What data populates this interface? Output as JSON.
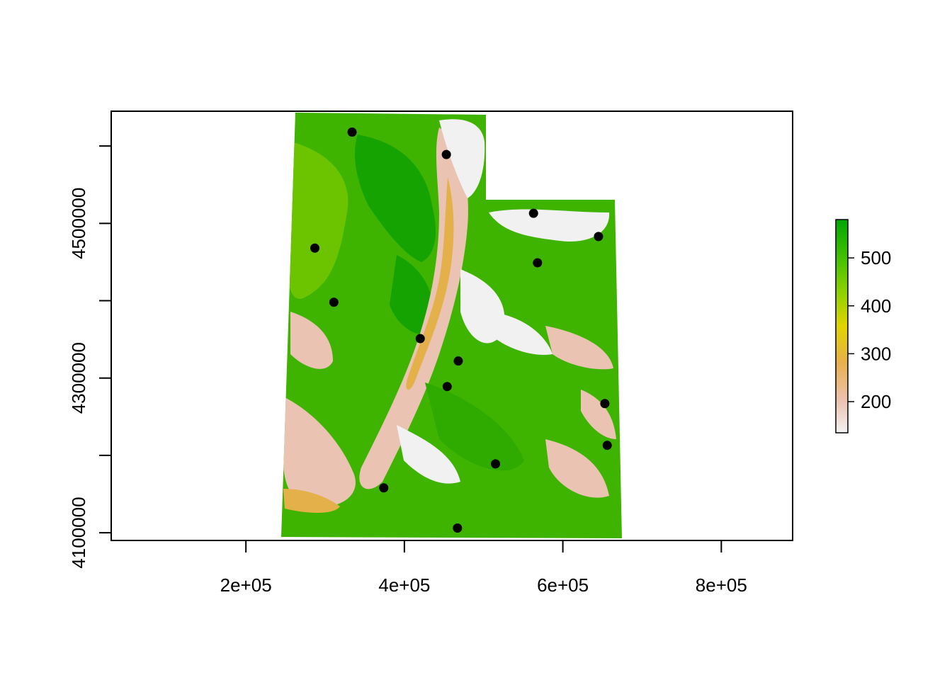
{
  "chart_data": {
    "type": "raster-map",
    "title": "",
    "xlabel": "",
    "ylabel": "",
    "xlim": [
      30000,
      890000
    ],
    "ylim": [
      4090000,
      4645000
    ],
    "x_ticks": [
      200000,
      400000,
      600000,
      800000
    ],
    "x_tick_labels": [
      "2e+05",
      "4e+05",
      "6e+05",
      "8e+05"
    ],
    "y_ticks": [
      4100000,
      4300000,
      4500000
    ],
    "y_tick_labels": [
      "4100000",
      "4300000",
      "4500000"
    ],
    "y_minor_ticks": [
      4200000,
      4400000,
      4600000
    ],
    "grid": false,
    "legend": {
      "placement": "right",
      "range": [
        135,
        580
      ],
      "ticks": [
        200,
        300,
        400,
        500
      ],
      "tick_labels": [
        "200",
        "300",
        "400",
        "500"
      ],
      "colors": [
        "#f2f2f2",
        "#ecc2b0",
        "#e8b04c",
        "#e0d400",
        "#8ed100",
        "#3fbf00",
        "#00a600"
      ]
    },
    "raster_colors": {
      "base": "#3fb400",
      "dark": "#14a300",
      "light": "#6cc400",
      "pink": "#ebc3b3",
      "white": "#f1f1f1",
      "orange": "#e4b04a"
    },
    "points": [
      {
        "x": 334000,
        "y": 4618000
      },
      {
        "x": 453000,
        "y": 4589000
      },
      {
        "x": 563000,
        "y": 4513000
      },
      {
        "x": 645000,
        "y": 4483000
      },
      {
        "x": 287000,
        "y": 4468000
      },
      {
        "x": 568000,
        "y": 4449000
      },
      {
        "x": 311000,
        "y": 4398000
      },
      {
        "x": 420000,
        "y": 4351000
      },
      {
        "x": 468000,
        "y": 4322000
      },
      {
        "x": 454000,
        "y": 4289000
      },
      {
        "x": 653000,
        "y": 4267000
      },
      {
        "x": 656000,
        "y": 4213000
      },
      {
        "x": 515000,
        "y": 4189000
      },
      {
        "x": 374000,
        "y": 4158000
      },
      {
        "x": 467000,
        "y": 4106000
      }
    ]
  }
}
